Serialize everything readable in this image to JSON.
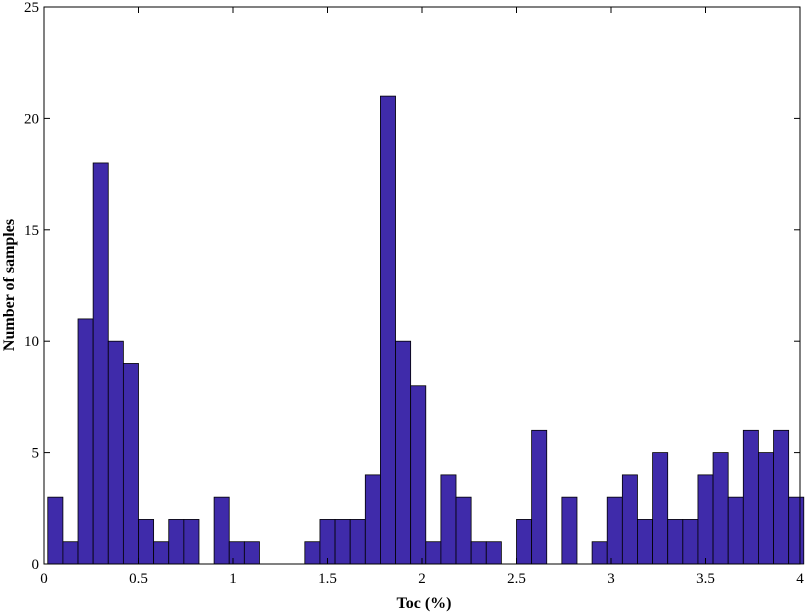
{
  "chart_data": {
    "type": "bar",
    "xlabel": "Toc (%)",
    "ylabel": "Number of samples",
    "xlim": [
      0,
      4
    ],
    "ylim": [
      0,
      25
    ],
    "xticks": [
      0,
      0.5,
      1,
      1.5,
      2,
      2.5,
      3,
      3.5,
      4
    ],
    "xtick_labels": [
      "0",
      "0.5",
      "1",
      "1.5",
      "2",
      "2.5",
      "3",
      "3.5",
      "4"
    ],
    "yticks": [
      0,
      5,
      10,
      15,
      20,
      25
    ],
    "ytick_labels": [
      "0",
      "5",
      "10",
      "15",
      "20",
      "25"
    ],
    "bin_width": 0.08,
    "bin_starts": [
      0.02,
      0.1,
      0.18,
      0.26,
      0.34,
      0.42,
      0.5,
      0.58,
      0.66,
      0.74,
      0.82,
      0.9,
      0.98,
      1.06,
      1.14,
      1.22,
      1.3,
      1.38,
      1.46,
      1.54,
      1.62,
      1.7,
      1.78,
      1.86,
      1.94,
      2.02,
      2.1,
      2.18,
      2.26,
      2.34,
      2.42,
      2.5,
      2.58,
      2.66,
      2.74,
      2.82,
      2.9,
      2.98,
      3.06,
      3.14,
      3.22,
      3.3,
      3.38,
      3.46,
      3.54,
      3.62,
      3.7,
      3.78,
      3.86,
      3.94
    ],
    "values": [
      3,
      1,
      11,
      18,
      10,
      9,
      2,
      1,
      2,
      2,
      0,
      3,
      1,
      1,
      0,
      0,
      0,
      1,
      2,
      2,
      2,
      4,
      21,
      10,
      8,
      1,
      4,
      3,
      1,
      1,
      0,
      2,
      6,
      0,
      3,
      0,
      1,
      3,
      4,
      2,
      5,
      2,
      2,
      4,
      5,
      3,
      6,
      5,
      6,
      3
    ],
    "bar_color": "#3F2BAA",
    "edge_color": "#000000",
    "grid": false
  }
}
